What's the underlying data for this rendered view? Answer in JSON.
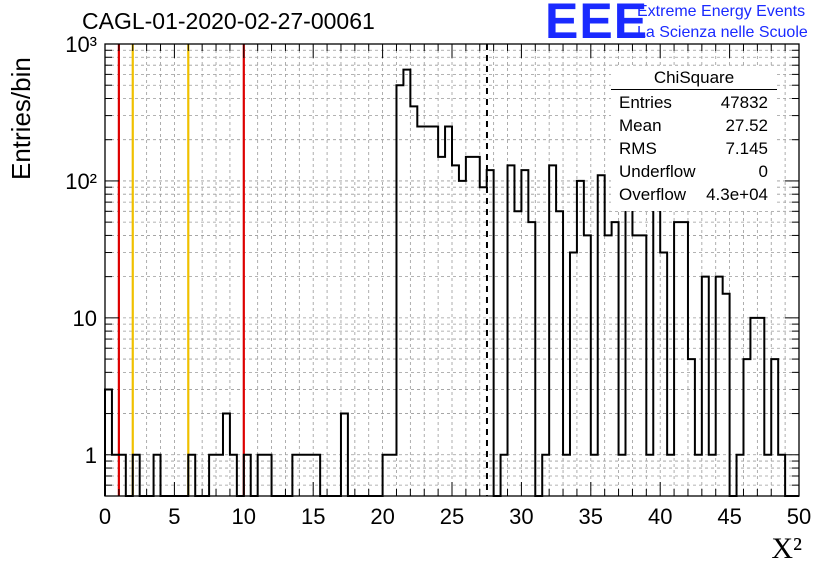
{
  "title": "CAGL-01-2020-02-27-00061",
  "logo": {
    "mark": "EEE",
    "line1": "Extreme Energy Events",
    "line2": "La Scienza nelle Scuole",
    "color": "#1a2aff"
  },
  "stats": {
    "title": "ChiSquare",
    "rows": [
      {
        "label": "Entries",
        "value": "47832"
      },
      {
        "label": "Mean",
        "value": "27.52"
      },
      {
        "label": "RMS",
        "value": "7.145"
      },
      {
        "label": "Underflow",
        "value": "0"
      },
      {
        "label": "Overflow",
        "value": "4.3e+04"
      }
    ]
  },
  "chart_data": {
    "type": "histogram",
    "xlabel": "X²",
    "ylabel": "Entries/bin",
    "xlim": [
      0,
      50
    ],
    "ylim": [
      0.5,
      1000
    ],
    "log_y": true,
    "grid": true,
    "bin_width": 0.5,
    "x_ticks": [
      "0",
      "5",
      "10",
      "15",
      "20",
      "25",
      "30",
      "35",
      "40",
      "45",
      "50"
    ],
    "y_ticks": [
      {
        "value": 1,
        "label": "1"
      },
      {
        "value": 10,
        "label": "10"
      },
      {
        "value": 100,
        "label": "10²"
      },
      {
        "value": 1000,
        "label": "10³"
      }
    ],
    "bins": [
      [
        0,
        0,
        0
      ],
      [
        0,
        0.5,
        3
      ],
      [
        0.5,
        1,
        1
      ],
      [
        1,
        1.5,
        1
      ],
      [
        1.5,
        2,
        0
      ],
      [
        2,
        2.5,
        1
      ],
      [
        2.5,
        3,
        0
      ],
      [
        3,
        3.5,
        0
      ],
      [
        3.5,
        4,
        1
      ],
      [
        4,
        4.5,
        0
      ],
      [
        4.5,
        5,
        0
      ],
      [
        5,
        5.5,
        0
      ],
      [
        5.5,
        6,
        0
      ],
      [
        6,
        6.5,
        1
      ],
      [
        6.5,
        7,
        0
      ],
      [
        7,
        7.5,
        0
      ],
      [
        7.5,
        8,
        1
      ],
      [
        8,
        8.5,
        1
      ],
      [
        8.5,
        9,
        2
      ],
      [
        9,
        9.5,
        1
      ],
      [
        9.5,
        10,
        0
      ],
      [
        10,
        10.5,
        1
      ],
      [
        10.5,
        11,
        0
      ],
      [
        11,
        11.5,
        1
      ],
      [
        11.5,
        12,
        1
      ],
      [
        12,
        12.5,
        0
      ],
      [
        12.5,
        13,
        0
      ],
      [
        13,
        13.5,
        0
      ],
      [
        13.5,
        14,
        1
      ],
      [
        14,
        14.5,
        1
      ],
      [
        14.5,
        15,
        1
      ],
      [
        15,
        15.5,
        1
      ],
      [
        15.5,
        16,
        0
      ],
      [
        16,
        16.5,
        0
      ],
      [
        16.5,
        17,
        0
      ],
      [
        17,
        17.5,
        2
      ],
      [
        17.5,
        18,
        0
      ],
      [
        18,
        18.5,
        0
      ],
      [
        18.5,
        19,
        0
      ],
      [
        19,
        19.5,
        0
      ],
      [
        19.5,
        20,
        0
      ],
      [
        20,
        20.5,
        1
      ],
      [
        20.5,
        21,
        1
      ],
      [
        21,
        21.5,
        500
      ],
      [
        21.5,
        22,
        650
      ],
      [
        22,
        22.5,
        350
      ],
      [
        22.5,
        23,
        250
      ],
      [
        23,
        23.5,
        250
      ],
      [
        23.5,
        24,
        250
      ],
      [
        24,
        24.5,
        150
      ],
      [
        24.5,
        25,
        250
      ],
      [
        25,
        25.5,
        130
      ],
      [
        25.5,
        26,
        100
      ],
      [
        26,
        26.5,
        150
      ],
      [
        26.5,
        27,
        150
      ],
      [
        27,
        27.5,
        90
      ],
      [
        27.5,
        28,
        120
      ],
      [
        28,
        28.5,
        0
      ],
      [
        28.5,
        29,
        1
      ],
      [
        29,
        29.5,
        130
      ],
      [
        29.5,
        30,
        60
      ],
      [
        30,
        30.5,
        120
      ],
      [
        30.5,
        31,
        50
      ],
      [
        31,
        31.5,
        0
      ],
      [
        31.5,
        32,
        1
      ],
      [
        32,
        32.5,
        130
      ],
      [
        32.5,
        33,
        60
      ],
      [
        33,
        33.5,
        1
      ],
      [
        33.5,
        34,
        30
      ],
      [
        34,
        34.5,
        100
      ],
      [
        34.5,
        35,
        40
      ],
      [
        35,
        35.5,
        1
      ],
      [
        35.5,
        36,
        110
      ],
      [
        36,
        36.5,
        40
      ],
      [
        36.5,
        37,
        50
      ],
      [
        37,
        37.5,
        1
      ],
      [
        37.5,
        38,
        110
      ],
      [
        38,
        38.5,
        40
      ],
      [
        38.5,
        39,
        40
      ],
      [
        39,
        39.5,
        1
      ],
      [
        39.5,
        40,
        90
      ],
      [
        40,
        40.5,
        30
      ],
      [
        40.5,
        41,
        1
      ],
      [
        41,
        41.5,
        50
      ],
      [
        41.5,
        42,
        50
      ],
      [
        42,
        42.5,
        5
      ],
      [
        42.5,
        43,
        1
      ],
      [
        43,
        43.5,
        20
      ],
      [
        43.5,
        44,
        1
      ],
      [
        44,
        44.5,
        20
      ],
      [
        44.5,
        45,
        15
      ],
      [
        45,
        45.5,
        0
      ],
      [
        45.5,
        46,
        1
      ],
      [
        46,
        46.5,
        5
      ],
      [
        46.5,
        47,
        10
      ],
      [
        47,
        47.5,
        10
      ],
      [
        47.5,
        48,
        1
      ],
      [
        48,
        48.5,
        5
      ],
      [
        48.5,
        49,
        1
      ],
      [
        49,
        50,
        0
      ]
    ],
    "vertical_lines": [
      {
        "x": 1,
        "color": "#dd0000",
        "style": "solid"
      },
      {
        "x": 2,
        "color": "#f0c000",
        "style": "solid"
      },
      {
        "x": 6,
        "color": "#f0c000",
        "style": "solid"
      },
      {
        "x": 10,
        "color": "#dd0000",
        "style": "solid"
      },
      {
        "x": 27.52,
        "color": "#000000",
        "style": "dashed"
      }
    ]
  }
}
